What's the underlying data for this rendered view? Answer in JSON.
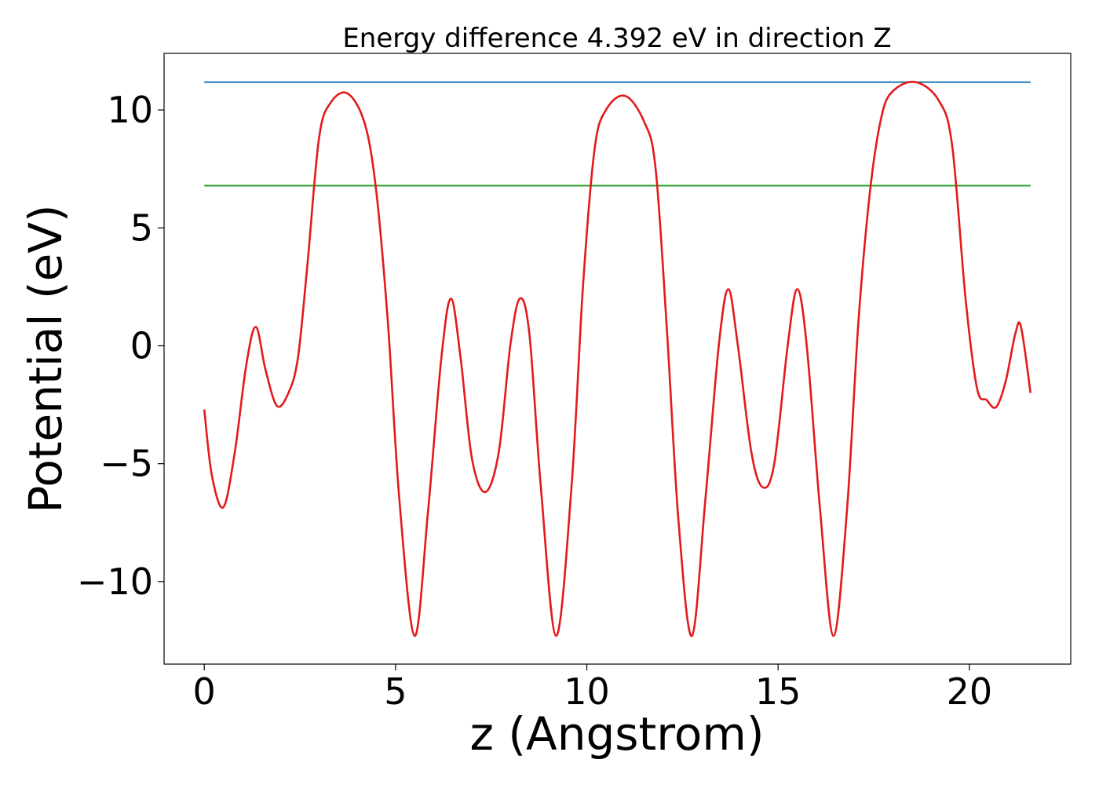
{
  "chart_data": {
    "type": "line",
    "title": "Energy difference 4.392 eV in direction Z",
    "xlabel": "z (Angstrom)",
    "ylabel": "Potential (eV)",
    "xlim": [
      -1.05,
      22.65
    ],
    "ylim": [
      -13.5,
      12.4
    ],
    "xticks": [
      0,
      5,
      10,
      15,
      20
    ],
    "xtick_labels": [
      "0",
      "5",
      "10",
      "15",
      "20"
    ],
    "yticks": [
      -10,
      -5,
      0,
      5,
      10
    ],
    "ytick_labels": [
      "−10",
      "−5",
      "0",
      "5",
      "10"
    ],
    "grid": false,
    "series": [
      {
        "color": "#1f77b4",
        "x": [
          0,
          21.6
        ],
        "y": [
          11.18,
          11.18
        ]
      },
      {
        "color": "#2ca02c",
        "x": [
          0,
          21.6
        ],
        "y": [
          6.79,
          6.79
        ]
      },
      {
        "color": "#e31a1c",
        "x": [
          0,
          0.2,
          0.5,
          0.8,
          1.1,
          1.35,
          1.6,
          1.9,
          2.2,
          2.45,
          2.7,
          3.0,
          3.3,
          3.75,
          4.2,
          4.5,
          4.8,
          5.1,
          5.5,
          5.85,
          6.2,
          6.45,
          6.7,
          7.0,
          7.35,
          7.7,
          8.0,
          8.25,
          8.5,
          8.8,
          9.2,
          9.6,
          9.9,
          10.2,
          10.5,
          11.0,
          11.5,
          11.8,
          12.1,
          12.4,
          12.75,
          13.1,
          13.45,
          13.7,
          13.95,
          14.3,
          14.6,
          14.9,
          15.25,
          15.5,
          15.75,
          16.1,
          16.45,
          16.8,
          17.1,
          17.4,
          17.7,
          18.0,
          18.6,
          19.2,
          19.55,
          19.9,
          20.2,
          20.45,
          20.7,
          20.95,
          21.2,
          21.35,
          21.6
        ],
        "y": [
          -2.7,
          -5.5,
          -6.85,
          -4.5,
          -0.8,
          0.8,
          -1.0,
          -2.55,
          -2.0,
          -0.5,
          3.5,
          8.8,
          10.3,
          10.7,
          9.4,
          6.5,
          1.0,
          -6.5,
          -12.3,
          -7.0,
          -0.5,
          2.0,
          -0.5,
          -4.8,
          -6.2,
          -4.5,
          0.0,
          2.0,
          0.5,
          -6.0,
          -12.3,
          -6.0,
          2.5,
          8.3,
          10.0,
          10.6,
          9.5,
          7.5,
          0.5,
          -7.5,
          -12.3,
          -6.5,
          0.0,
          2.4,
          0.0,
          -4.5,
          -6.0,
          -5.0,
          0.0,
          2.4,
          0.0,
          -7.0,
          -12.3,
          -7.0,
          1.0,
          6.5,
          9.7,
          10.8,
          11.18,
          10.4,
          8.5,
          2.0,
          -1.8,
          -2.3,
          -2.6,
          -1.5,
          0.5,
          0.8,
          -2.0
        ]
      }
    ]
  }
}
